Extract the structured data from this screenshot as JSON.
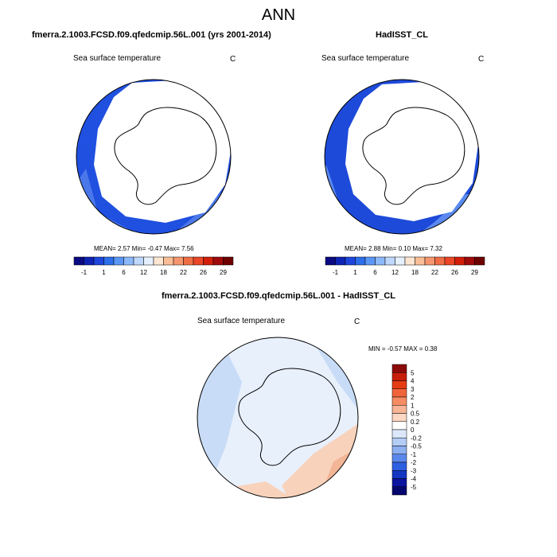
{
  "main_title": "ANN",
  "panels": [
    {
      "title": "fmerra.2.1003.FCSD.f09.qfedcmip.56L.001 (yrs 2001-2014)",
      "variable": "Sea surface temperature",
      "units": "C",
      "stats": "MEAN=   2.57  Min=  -0.47  Max=   7.56",
      "colorbar": {
        "labels": [
          "-1",
          "1",
          "6",
          "12",
          "18",
          "22",
          "26",
          "29"
        ],
        "colors": [
          "#0a0a82",
          "#0f23b4",
          "#1e46dc",
          "#2d6eeb",
          "#5a96f5",
          "#8cb9fa",
          "#bed7fc",
          "#e6f0fc",
          "#fce6d2",
          "#fabe96",
          "#f5966e",
          "#f06e46",
          "#eb4628",
          "#d21e0a",
          "#a00a0a",
          "#6e0000"
        ]
      }
    },
    {
      "title": "HadISST_CL",
      "variable": "Sea surface temperature",
      "units": "C",
      "stats": "MEAN=   2.88  Min=   0.10  Max=   7.32",
      "colorbar": {
        "labels": [
          "-1",
          "1",
          "6",
          "12",
          "18",
          "22",
          "26",
          "29"
        ],
        "colors": [
          "#0a0a82",
          "#0f23b4",
          "#1e46dc",
          "#2d6eeb",
          "#5a96f5",
          "#8cb9fa",
          "#bed7fc",
          "#e6f0fc",
          "#fce6d2",
          "#fabe96",
          "#f5966e",
          "#f06e46",
          "#eb4628",
          "#d21e0a",
          "#a00a0a",
          "#6e0000"
        ]
      }
    },
    {
      "title": "fmerra.2.1003.FCSD.f09.qfedcmip.56L.001 - HadISST_CL",
      "variable": "Sea surface temperature",
      "units": "C",
      "stats": "MIN =  -0.57 MAX =   0.38",
      "colorbar": {
        "labels": [
          "5",
          "4",
          "3",
          "2",
          "1",
          "0.5",
          "0.2",
          "0",
          "-0.2",
          "-0.5",
          "-1",
          "-2",
          "-3",
          "-4",
          "-5"
        ],
        "colors": [
          "#8c0a0a",
          "#c81e0a",
          "#e63c14",
          "#f0643c",
          "#f58c64",
          "#f8b496",
          "#fcd7c3",
          "#ffffff",
          "#dce8fa",
          "#b4cdf5",
          "#8caff0",
          "#5a87eb",
          "#2d5fe1",
          "#1437c3",
          "#0a14a0",
          "#05056e"
        ]
      }
    }
  ],
  "map_colors": {
    "ocean_cold_model": "#2050e0",
    "ocean_warm_model": "#4a78ea",
    "ocean_cold_obs": "#1d4ad9",
    "ocean_warm_obs": "#5a8af0",
    "diff_neutral": "#e8f0fc",
    "diff_slight_neg": "#c8dcf7",
    "diff_slight_pos": "#f8d2bb",
    "diff_pos": "#f2b596"
  }
}
